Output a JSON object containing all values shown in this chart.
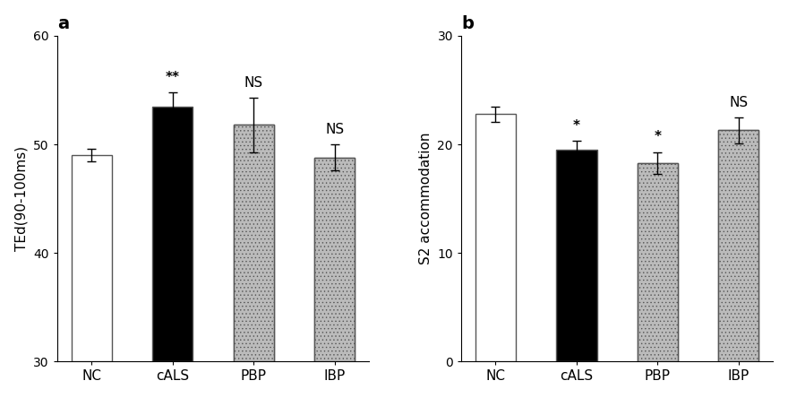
{
  "panel_a": {
    "categories": [
      "NC",
      "cALS",
      "PBP",
      "IBP"
    ],
    "values": [
      49.0,
      53.5,
      51.8,
      48.8
    ],
    "errors": [
      0.6,
      1.3,
      2.5,
      1.2
    ],
    "ylabel": "TEd(90-100ms)",
    "ylim": [
      30,
      60
    ],
    "yticks": [
      30,
      40,
      50,
      60
    ],
    "annotations": [
      "",
      "**",
      "NS",
      "NS"
    ],
    "title": "a",
    "bar_styles": [
      "white",
      "black",
      "checker",
      "checker"
    ]
  },
  "panel_b": {
    "categories": [
      "NC",
      "cALS",
      "PBP",
      "IBP"
    ],
    "values": [
      22.8,
      19.5,
      18.3,
      21.3
    ],
    "errors": [
      0.7,
      0.8,
      1.0,
      1.2
    ],
    "ylabel": "S2 accommodation",
    "ylim": [
      0,
      30
    ],
    "yticks": [
      0,
      10,
      20,
      30
    ],
    "annotations": [
      "",
      "*",
      "*",
      "NS"
    ],
    "title": "b",
    "bar_styles": [
      "white",
      "black",
      "checker",
      "checker"
    ]
  },
  "bar_width": 0.5,
  "edge_color": "#555555",
  "annotation_fontsize": 11,
  "label_fontsize": 11,
  "tick_fontsize": 10,
  "title_fontsize": 14,
  "background_color": "#ffffff",
  "checker_color": "#bbbbbb"
}
